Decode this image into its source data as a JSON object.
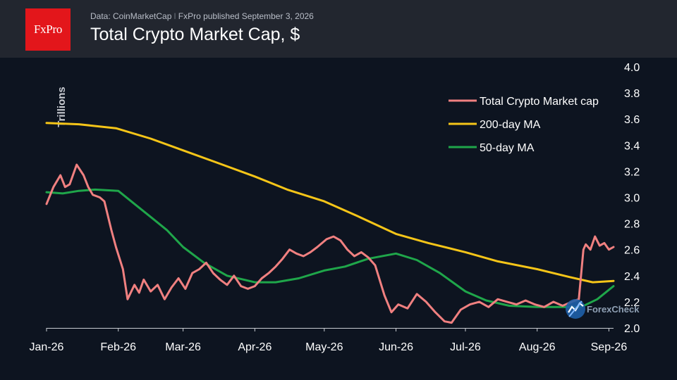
{
  "header": {
    "logo_text": "FxPro",
    "source_data": "Data: CoinMarketCap",
    "source_sep": "I",
    "source_published": "FxPro published September 3, 2026",
    "title": "Total Crypto Market Cap, $"
  },
  "watermark": {
    "text": "ForexCheck",
    "icon": "forexcheck-logo-icon"
  },
  "colors": {
    "background": "#0d1420",
    "header": "#22262f",
    "brand": "#e3161b",
    "market_cap": "#f08080",
    "ma200": "#f5c518",
    "ma50": "#1fa64a"
  },
  "chart_data": {
    "type": "line",
    "title": "Total Crypto Market Cap, $",
    "ylabel": "Trillions",
    "ylim": [
      2.0,
      4.0
    ],
    "yticks": [
      "4.0",
      "3.8",
      "3.6",
      "3.4",
      "3.2",
      "3.0",
      "2.8",
      "2.6",
      "2.4",
      "2.2",
      "2.0"
    ],
    "xticks": [
      "Jan-26",
      "Feb-26",
      "Mar-26",
      "Apr-26",
      "May-26",
      "Jun-26",
      "Jul-26",
      "Aug-26",
      "Sep-26"
    ],
    "x_range": [
      "2026-01-01",
      "2026-09-03"
    ],
    "legend_position": "top-right",
    "series": [
      {
        "name": "Total Crypto Market cap",
        "color": "#f08080",
        "points": [
          [
            "2026-01-01",
            2.95
          ],
          [
            "2026-01-04",
            3.08
          ],
          [
            "2026-01-07",
            3.17
          ],
          [
            "2026-01-09",
            3.08
          ],
          [
            "2026-01-11",
            3.1
          ],
          [
            "2026-01-14",
            3.25
          ],
          [
            "2026-01-17",
            3.17
          ],
          [
            "2026-01-19",
            3.08
          ],
          [
            "2026-01-21",
            3.02
          ],
          [
            "2026-01-24",
            3.0
          ],
          [
            "2026-01-26",
            2.97
          ],
          [
            "2026-01-29",
            2.75
          ],
          [
            "2026-01-31",
            2.62
          ],
          [
            "2026-02-03",
            2.45
          ],
          [
            "2026-02-05",
            2.22
          ],
          [
            "2026-02-08",
            2.33
          ],
          [
            "2026-02-10",
            2.27
          ],
          [
            "2026-02-12",
            2.37
          ],
          [
            "2026-02-15",
            2.28
          ],
          [
            "2026-02-18",
            2.33
          ],
          [
            "2026-02-21",
            2.22
          ],
          [
            "2026-02-24",
            2.31
          ],
          [
            "2026-02-27",
            2.38
          ],
          [
            "2026-03-02",
            2.3
          ],
          [
            "2026-03-05",
            2.42
          ],
          [
            "2026-03-08",
            2.45
          ],
          [
            "2026-03-11",
            2.5
          ],
          [
            "2026-03-14",
            2.42
          ],
          [
            "2026-03-17",
            2.37
          ],
          [
            "2026-03-20",
            2.33
          ],
          [
            "2026-03-23",
            2.4
          ],
          [
            "2026-03-26",
            2.32
          ],
          [
            "2026-03-29",
            2.3
          ],
          [
            "2026-04-01",
            2.32
          ],
          [
            "2026-04-04",
            2.38
          ],
          [
            "2026-04-07",
            2.42
          ],
          [
            "2026-04-10",
            2.47
          ],
          [
            "2026-04-13",
            2.53
          ],
          [
            "2026-04-16",
            2.6
          ],
          [
            "2026-04-19",
            2.57
          ],
          [
            "2026-04-22",
            2.55
          ],
          [
            "2026-04-25",
            2.58
          ],
          [
            "2026-04-28",
            2.62
          ],
          [
            "2026-05-02",
            2.68
          ],
          [
            "2026-05-05",
            2.7
          ],
          [
            "2026-05-08",
            2.67
          ],
          [
            "2026-05-11",
            2.6
          ],
          [
            "2026-05-14",
            2.55
          ],
          [
            "2026-05-17",
            2.58
          ],
          [
            "2026-05-20",
            2.54
          ],
          [
            "2026-05-23",
            2.48
          ],
          [
            "2026-05-27",
            2.25
          ],
          [
            "2026-05-30",
            2.12
          ],
          [
            "2026-06-02",
            2.18
          ],
          [
            "2026-06-06",
            2.15
          ],
          [
            "2026-06-10",
            2.26
          ],
          [
            "2026-06-14",
            2.2
          ],
          [
            "2026-06-18",
            2.12
          ],
          [
            "2026-06-22",
            2.05
          ],
          [
            "2026-06-25",
            2.04
          ],
          [
            "2026-06-29",
            2.14
          ],
          [
            "2026-07-03",
            2.18
          ],
          [
            "2026-07-07",
            2.2
          ],
          [
            "2026-07-11",
            2.16
          ],
          [
            "2026-07-15",
            2.22
          ],
          [
            "2026-07-19",
            2.2
          ],
          [
            "2026-07-23",
            2.18
          ],
          [
            "2026-07-27",
            2.21
          ],
          [
            "2026-07-31",
            2.18
          ],
          [
            "2026-08-04",
            2.16
          ],
          [
            "2026-08-08",
            2.2
          ],
          [
            "2026-08-12",
            2.17
          ],
          [
            "2026-08-16",
            2.2
          ],
          [
            "2026-08-19",
            2.22
          ],
          [
            "2026-08-21",
            2.6
          ],
          [
            "2026-08-22",
            2.64
          ],
          [
            "2026-08-24",
            2.6
          ],
          [
            "2026-08-26",
            2.7
          ],
          [
            "2026-08-28",
            2.63
          ],
          [
            "2026-08-30",
            2.65
          ],
          [
            "2026-09-01",
            2.6
          ],
          [
            "2026-09-03",
            2.62
          ]
        ]
      },
      {
        "name": "200-day MA",
        "color": "#f5c518",
        "points": [
          [
            "2026-01-01",
            3.57
          ],
          [
            "2026-01-15",
            3.56
          ],
          [
            "2026-01-31",
            3.53
          ],
          [
            "2026-02-15",
            3.45
          ],
          [
            "2026-03-01",
            3.36
          ],
          [
            "2026-03-15",
            3.27
          ],
          [
            "2026-04-01",
            3.16
          ],
          [
            "2026-04-15",
            3.06
          ],
          [
            "2026-05-01",
            2.97
          ],
          [
            "2026-05-15",
            2.86
          ],
          [
            "2026-06-01",
            2.72
          ],
          [
            "2026-06-15",
            2.65
          ],
          [
            "2026-07-01",
            2.58
          ],
          [
            "2026-07-15",
            2.51
          ],
          [
            "2026-08-01",
            2.45
          ],
          [
            "2026-08-15",
            2.39
          ],
          [
            "2026-08-25",
            2.35
          ],
          [
            "2026-09-03",
            2.36
          ]
        ]
      },
      {
        "name": "50-day MA",
        "color": "#1fa64a",
        "points": [
          [
            "2026-01-01",
            3.04
          ],
          [
            "2026-01-08",
            3.03
          ],
          [
            "2026-01-15",
            3.05
          ],
          [
            "2026-01-22",
            3.06
          ],
          [
            "2026-02-01",
            3.05
          ],
          [
            "2026-02-08",
            2.95
          ],
          [
            "2026-02-15",
            2.85
          ],
          [
            "2026-02-22",
            2.75
          ],
          [
            "2026-03-01",
            2.62
          ],
          [
            "2026-03-10",
            2.5
          ],
          [
            "2026-03-20",
            2.4
          ],
          [
            "2026-04-01",
            2.35
          ],
          [
            "2026-04-10",
            2.35
          ],
          [
            "2026-04-20",
            2.38
          ],
          [
            "2026-05-01",
            2.44
          ],
          [
            "2026-05-10",
            2.47
          ],
          [
            "2026-05-20",
            2.53
          ],
          [
            "2026-06-01",
            2.57
          ],
          [
            "2026-06-10",
            2.52
          ],
          [
            "2026-06-20",
            2.42
          ],
          [
            "2026-07-01",
            2.28
          ],
          [
            "2026-07-10",
            2.21
          ],
          [
            "2026-07-20",
            2.17
          ],
          [
            "2026-08-01",
            2.16
          ],
          [
            "2026-08-10",
            2.16
          ],
          [
            "2026-08-20",
            2.16
          ],
          [
            "2026-08-27",
            2.22
          ],
          [
            "2026-09-03",
            2.32
          ]
        ]
      }
    ]
  }
}
